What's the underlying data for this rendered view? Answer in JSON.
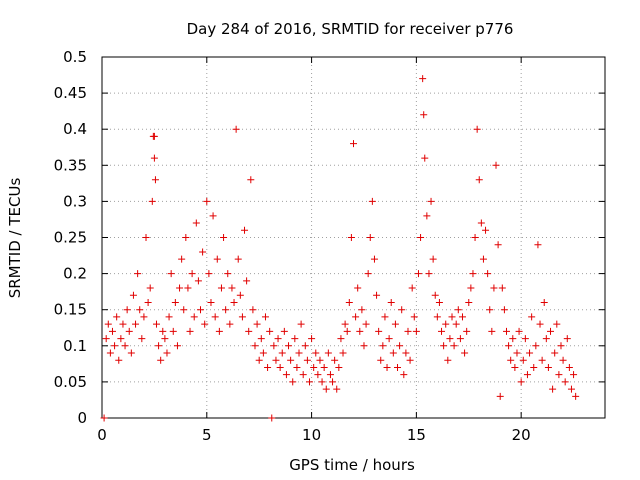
{
  "chart_data": {
    "type": "scatter",
    "title": "Day 284 of 2016, SRMTID for receiver p776",
    "xlabel": "GPS time / hours",
    "ylabel": "SRMTID / TECUs",
    "xlim": [
      0,
      24
    ],
    "ylim": [
      0,
      0.5
    ],
    "xticks": [
      0,
      5,
      10,
      15,
      20
    ],
    "yticks": [
      0,
      0.05,
      0.1,
      0.15,
      0.2,
      0.25,
      0.3,
      0.35,
      0.4,
      0.45,
      0.5
    ],
    "xtick_labels": [
      "0",
      "5",
      "10",
      "15",
      "20"
    ],
    "ytick_labels": [
      "0",
      "0.05",
      "0.1",
      "0.15",
      "0.2",
      "0.25",
      "0.3",
      "0.35",
      "0.4",
      "0.45",
      "0.5"
    ],
    "grid": true,
    "marker": "+",
    "color": "#e00000",
    "series": [
      {
        "name": "SRMTID",
        "points": [
          [
            0.1,
            0.0
          ],
          [
            0.2,
            0.11
          ],
          [
            0.3,
            0.13
          ],
          [
            0.4,
            0.09
          ],
          [
            0.5,
            0.12
          ],
          [
            0.6,
            0.1
          ],
          [
            0.7,
            0.14
          ],
          [
            0.8,
            0.08
          ],
          [
            0.9,
            0.11
          ],
          [
            1.0,
            0.13
          ],
          [
            1.1,
            0.1
          ],
          [
            1.2,
            0.15
          ],
          [
            1.3,
            0.12
          ],
          [
            1.4,
            0.09
          ],
          [
            1.5,
            0.17
          ],
          [
            1.6,
            0.13
          ],
          [
            1.7,
            0.2
          ],
          [
            1.8,
            0.15
          ],
          [
            1.9,
            0.11
          ],
          [
            2.0,
            0.14
          ],
          [
            2.1,
            0.25
          ],
          [
            2.2,
            0.16
          ],
          [
            2.3,
            0.18
          ],
          [
            2.4,
            0.3
          ],
          [
            2.5,
            0.39
          ],
          [
            2.45,
            0.39
          ],
          [
            2.5,
            0.36
          ],
          [
            2.55,
            0.33
          ],
          [
            2.6,
            0.13
          ],
          [
            2.7,
            0.1
          ],
          [
            2.8,
            0.08
          ],
          [
            2.9,
            0.12
          ],
          [
            3.0,
            0.11
          ],
          [
            3.1,
            0.09
          ],
          [
            3.2,
            0.14
          ],
          [
            3.3,
            0.2
          ],
          [
            3.4,
            0.12
          ],
          [
            3.5,
            0.16
          ],
          [
            3.6,
            0.1
          ],
          [
            3.7,
            0.18
          ],
          [
            3.8,
            0.22
          ],
          [
            3.9,
            0.15
          ],
          [
            4.0,
            0.25
          ],
          [
            4.1,
            0.18
          ],
          [
            4.2,
            0.12
          ],
          [
            4.3,
            0.2
          ],
          [
            4.4,
            0.14
          ],
          [
            4.5,
            0.27
          ],
          [
            4.6,
            0.19
          ],
          [
            4.7,
            0.15
          ],
          [
            4.8,
            0.23
          ],
          [
            4.9,
            0.13
          ],
          [
            5.0,
            0.3
          ],
          [
            5.1,
            0.2
          ],
          [
            5.2,
            0.16
          ],
          [
            5.3,
            0.28
          ],
          [
            5.4,
            0.14
          ],
          [
            5.5,
            0.22
          ],
          [
            5.6,
            0.12
          ],
          [
            5.7,
            0.18
          ],
          [
            5.8,
            0.25
          ],
          [
            5.9,
            0.15
          ],
          [
            6.0,
            0.2
          ],
          [
            6.1,
            0.13
          ],
          [
            6.2,
            0.18
          ],
          [
            6.3,
            0.16
          ],
          [
            6.4,
            0.4
          ],
          [
            6.5,
            0.22
          ],
          [
            6.6,
            0.17
          ],
          [
            6.7,
            0.14
          ],
          [
            6.8,
            0.26
          ],
          [
            6.9,
            0.19
          ],
          [
            7.0,
            0.12
          ],
          [
            7.1,
            0.33
          ],
          [
            7.2,
            0.15
          ],
          [
            7.3,
            0.1
          ],
          [
            7.4,
            0.13
          ],
          [
            7.5,
            0.08
          ],
          [
            7.6,
            0.11
          ],
          [
            7.7,
            0.09
          ],
          [
            7.8,
            0.14
          ],
          [
            7.9,
            0.07
          ],
          [
            8.0,
            0.12
          ],
          [
            8.1,
            0.0
          ],
          [
            8.2,
            0.1
          ],
          [
            8.3,
            0.08
          ],
          [
            8.4,
            0.11
          ],
          [
            8.5,
            0.07
          ],
          [
            8.6,
            0.09
          ],
          [
            8.7,
            0.12
          ],
          [
            8.8,
            0.06
          ],
          [
            8.9,
            0.1
          ],
          [
            9.0,
            0.08
          ],
          [
            9.1,
            0.05
          ],
          [
            9.2,
            0.11
          ],
          [
            9.3,
            0.07
          ],
          [
            9.4,
            0.09
          ],
          [
            9.5,
            0.13
          ],
          [
            9.6,
            0.06
          ],
          [
            9.7,
            0.1
          ],
          [
            9.8,
            0.08
          ],
          [
            9.9,
            0.05
          ],
          [
            10.0,
            0.11
          ],
          [
            10.1,
            0.07
          ],
          [
            10.2,
            0.09
          ],
          [
            10.3,
            0.06
          ],
          [
            10.4,
            0.08
          ],
          [
            10.5,
            0.05
          ],
          [
            10.6,
            0.07
          ],
          [
            10.7,
            0.04
          ],
          [
            10.8,
            0.09
          ],
          [
            10.9,
            0.06
          ],
          [
            11.0,
            0.05
          ],
          [
            11.1,
            0.08
          ],
          [
            11.2,
            0.04
          ],
          [
            11.3,
            0.07
          ],
          [
            11.4,
            0.11
          ],
          [
            11.5,
            0.09
          ],
          [
            11.6,
            0.13
          ],
          [
            11.7,
            0.12
          ],
          [
            11.8,
            0.16
          ],
          [
            11.9,
            0.25
          ],
          [
            12.0,
            0.38
          ],
          [
            12.1,
            0.14
          ],
          [
            12.2,
            0.18
          ],
          [
            12.3,
            0.12
          ],
          [
            12.4,
            0.15
          ],
          [
            12.5,
            0.1
          ],
          [
            12.6,
            0.13
          ],
          [
            12.7,
            0.2
          ],
          [
            12.8,
            0.25
          ],
          [
            12.9,
            0.3
          ],
          [
            13.0,
            0.22
          ],
          [
            13.1,
            0.17
          ],
          [
            13.2,
            0.12
          ],
          [
            13.3,
            0.08
          ],
          [
            13.4,
            0.1
          ],
          [
            13.5,
            0.14
          ],
          [
            13.6,
            0.07
          ],
          [
            13.7,
            0.11
          ],
          [
            13.8,
            0.16
          ],
          [
            13.9,
            0.09
          ],
          [
            14.0,
            0.13
          ],
          [
            14.1,
            0.07
          ],
          [
            14.2,
            0.1
          ],
          [
            14.3,
            0.15
          ],
          [
            14.4,
            0.06
          ],
          [
            14.5,
            0.09
          ],
          [
            14.6,
            0.12
          ],
          [
            14.7,
            0.08
          ],
          [
            14.8,
            0.18
          ],
          [
            14.9,
            0.14
          ],
          [
            15.0,
            0.12
          ],
          [
            15.1,
            0.2
          ],
          [
            15.2,
            0.25
          ],
          [
            15.3,
            0.47
          ],
          [
            15.35,
            0.42
          ],
          [
            15.4,
            0.36
          ],
          [
            15.5,
            0.28
          ],
          [
            15.6,
            0.2
          ],
          [
            15.7,
            0.3
          ],
          [
            15.8,
            0.22
          ],
          [
            15.9,
            0.17
          ],
          [
            16.0,
            0.14
          ],
          [
            16.1,
            0.16
          ],
          [
            16.2,
            0.12
          ],
          [
            16.3,
            0.1
          ],
          [
            16.4,
            0.13
          ],
          [
            16.5,
            0.08
          ],
          [
            16.6,
            0.11
          ],
          [
            16.7,
            0.14
          ],
          [
            16.8,
            0.1
          ],
          [
            16.9,
            0.13
          ],
          [
            17.0,
            0.15
          ],
          [
            17.1,
            0.11
          ],
          [
            17.2,
            0.14
          ],
          [
            17.3,
            0.09
          ],
          [
            17.4,
            0.12
          ],
          [
            17.5,
            0.16
          ],
          [
            17.6,
            0.18
          ],
          [
            17.7,
            0.2
          ],
          [
            17.8,
            0.25
          ],
          [
            17.9,
            0.4
          ],
          [
            18.0,
            0.33
          ],
          [
            18.1,
            0.27
          ],
          [
            18.2,
            0.22
          ],
          [
            18.3,
            0.26
          ],
          [
            18.4,
            0.2
          ],
          [
            18.5,
            0.15
          ],
          [
            18.6,
            0.12
          ],
          [
            18.7,
            0.18
          ],
          [
            18.8,
            0.35
          ],
          [
            18.9,
            0.24
          ],
          [
            19.0,
            0.03
          ],
          [
            19.1,
            0.18
          ],
          [
            19.2,
            0.15
          ],
          [
            19.3,
            0.12
          ],
          [
            19.4,
            0.1
          ],
          [
            19.5,
            0.08
          ],
          [
            19.6,
            0.11
          ],
          [
            19.7,
            0.07
          ],
          [
            19.8,
            0.09
          ],
          [
            19.9,
            0.12
          ],
          [
            20.0,
            0.05
          ],
          [
            20.1,
            0.08
          ],
          [
            20.2,
            0.11
          ],
          [
            20.3,
            0.06
          ],
          [
            20.4,
            0.09
          ],
          [
            20.5,
            0.14
          ],
          [
            20.6,
            0.07
          ],
          [
            20.7,
            0.1
          ],
          [
            20.8,
            0.24
          ],
          [
            20.9,
            0.13
          ],
          [
            21.0,
            0.08
          ],
          [
            21.1,
            0.16
          ],
          [
            21.2,
            0.11
          ],
          [
            21.3,
            0.07
          ],
          [
            21.4,
            0.12
          ],
          [
            21.5,
            0.04
          ],
          [
            21.6,
            0.09
          ],
          [
            21.7,
            0.13
          ],
          [
            21.8,
            0.06
          ],
          [
            21.9,
            0.1
          ],
          [
            22.0,
            0.08
          ],
          [
            22.1,
            0.05
          ],
          [
            22.2,
            0.11
          ],
          [
            22.3,
            0.07
          ],
          [
            22.4,
            0.04
          ],
          [
            22.5,
            0.06
          ],
          [
            22.6,
            0.03
          ]
        ]
      }
    ]
  }
}
